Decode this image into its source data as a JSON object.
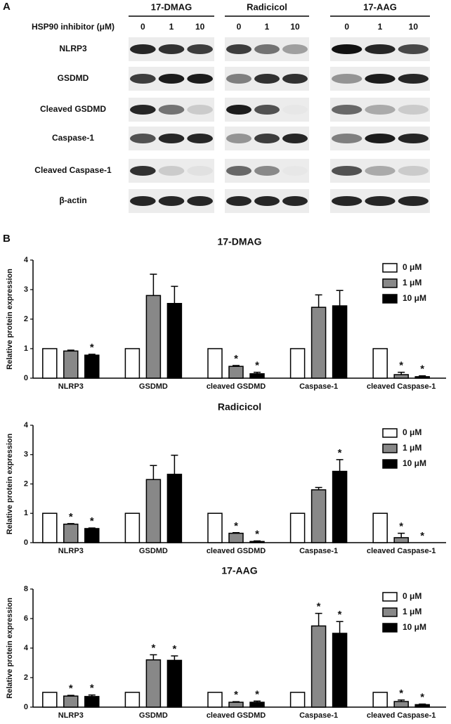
{
  "panel_a": {
    "label": "A",
    "row_header": "HSP90 inhibitor (μM)",
    "groups": [
      {
        "name": "17-DMAG",
        "doses": [
          0,
          1,
          10
        ]
      },
      {
        "name": "Radicicol",
        "doses": [
          0,
          1,
          10
        ]
      },
      {
        "name": "17-AAG",
        "doses": [
          0,
          1,
          10
        ]
      }
    ],
    "proteins": [
      "NLRP3",
      "GSDMD",
      "Cleaved GSDMD",
      "Caspase-1",
      "Cleaved Caspase-1",
      "β-actin"
    ]
  },
  "panel_b": {
    "label": "B"
  },
  "chart_data": [
    {
      "type": "bar",
      "title": "17-DMAG",
      "y_label": "Relative protein expression",
      "categories": [
        "NLRP3",
        "GSDMD",
        "cleaved GSDMD",
        "Caspase-1",
        "cleaved Caspase-1"
      ],
      "ylim": [
        0,
        4
      ],
      "yticks": [
        0,
        1,
        2,
        3,
        4
      ],
      "legend": "top-right",
      "series": [
        {
          "name": "0 μM",
          "color": "#ffffff",
          "values": [
            1,
            1,
            1,
            1,
            1
          ]
        },
        {
          "name": "1 μM",
          "color": "#888888",
          "values": [
            0.92,
            2.8,
            0.4,
            2.4,
            0.12
          ],
          "errors": [
            0.03,
            0.72,
            0.03,
            0.42,
            0.08
          ],
          "markers": [
            null,
            null,
            "*",
            null,
            "*"
          ]
        },
        {
          "name": "10 μM",
          "color": "#000000",
          "values": [
            0.78,
            2.53,
            0.15,
            2.45,
            0.05
          ],
          "errors": [
            0.03,
            0.58,
            0.05,
            0.52,
            0.03
          ],
          "markers": [
            "*",
            null,
            "*",
            null,
            "*"
          ]
        }
      ]
    },
    {
      "type": "bar",
      "title": "Radicicol",
      "y_label": "Relative protein expression",
      "categories": [
        "NLRP3",
        "GSDMD",
        "cleaved GSDMD",
        "Caspase-1",
        "cleaved Caspase-1"
      ],
      "ylim": [
        0,
        4
      ],
      "yticks": [
        0,
        1,
        2,
        3,
        4
      ],
      "legend": "top-right",
      "series": [
        {
          "name": "0 μM",
          "color": "#ffffff",
          "values": [
            1,
            1,
            1,
            1,
            1
          ]
        },
        {
          "name": "1 μM",
          "color": "#888888",
          "values": [
            0.63,
            2.15,
            0.32,
            1.8,
            0.17
          ],
          "errors": [
            0.02,
            0.48,
            0.02,
            0.08,
            0.15
          ],
          "markers": [
            "*",
            null,
            "*",
            null,
            "*"
          ]
        },
        {
          "name": "10 μM",
          "color": "#000000",
          "values": [
            0.48,
            2.33,
            0.04,
            2.43,
            0
          ],
          "errors": [
            0.02,
            0.65,
            0.02,
            0.4,
            null
          ],
          "markers": [
            "*",
            null,
            "*",
            "*",
            "*"
          ]
        }
      ]
    },
    {
      "type": "bar",
      "title": "17-AAG",
      "y_label": "Relative protein expression",
      "categories": [
        "NLRP3",
        "GSDMD",
        "cleaved GSDMD",
        "Caspase-1",
        "cleaved Caspase-1"
      ],
      "ylim": [
        0,
        8
      ],
      "yticks": [
        0,
        2,
        4,
        6,
        8
      ],
      "legend": "top-right",
      "series": [
        {
          "name": "0 μM",
          "color": "#ffffff",
          "values": [
            1,
            1,
            1,
            1,
            1
          ]
        },
        {
          "name": "1 μM",
          "color": "#888888",
          "values": [
            0.75,
            3.2,
            0.33,
            5.5,
            0.38
          ],
          "errors": [
            0.05,
            0.35,
            0.04,
            0.85,
            0.1
          ],
          "markers": [
            "*",
            "*",
            "*",
            "*",
            "*"
          ]
        },
        {
          "name": "10 μM",
          "color": "#000000",
          "values": [
            0.72,
            3.17,
            0.33,
            5.0,
            0.17
          ],
          "errors": [
            0.1,
            0.3,
            0.08,
            0.8,
            0.04
          ],
          "markers": [
            "*",
            "*",
            "*",
            "*",
            "*"
          ]
        }
      ]
    }
  ]
}
